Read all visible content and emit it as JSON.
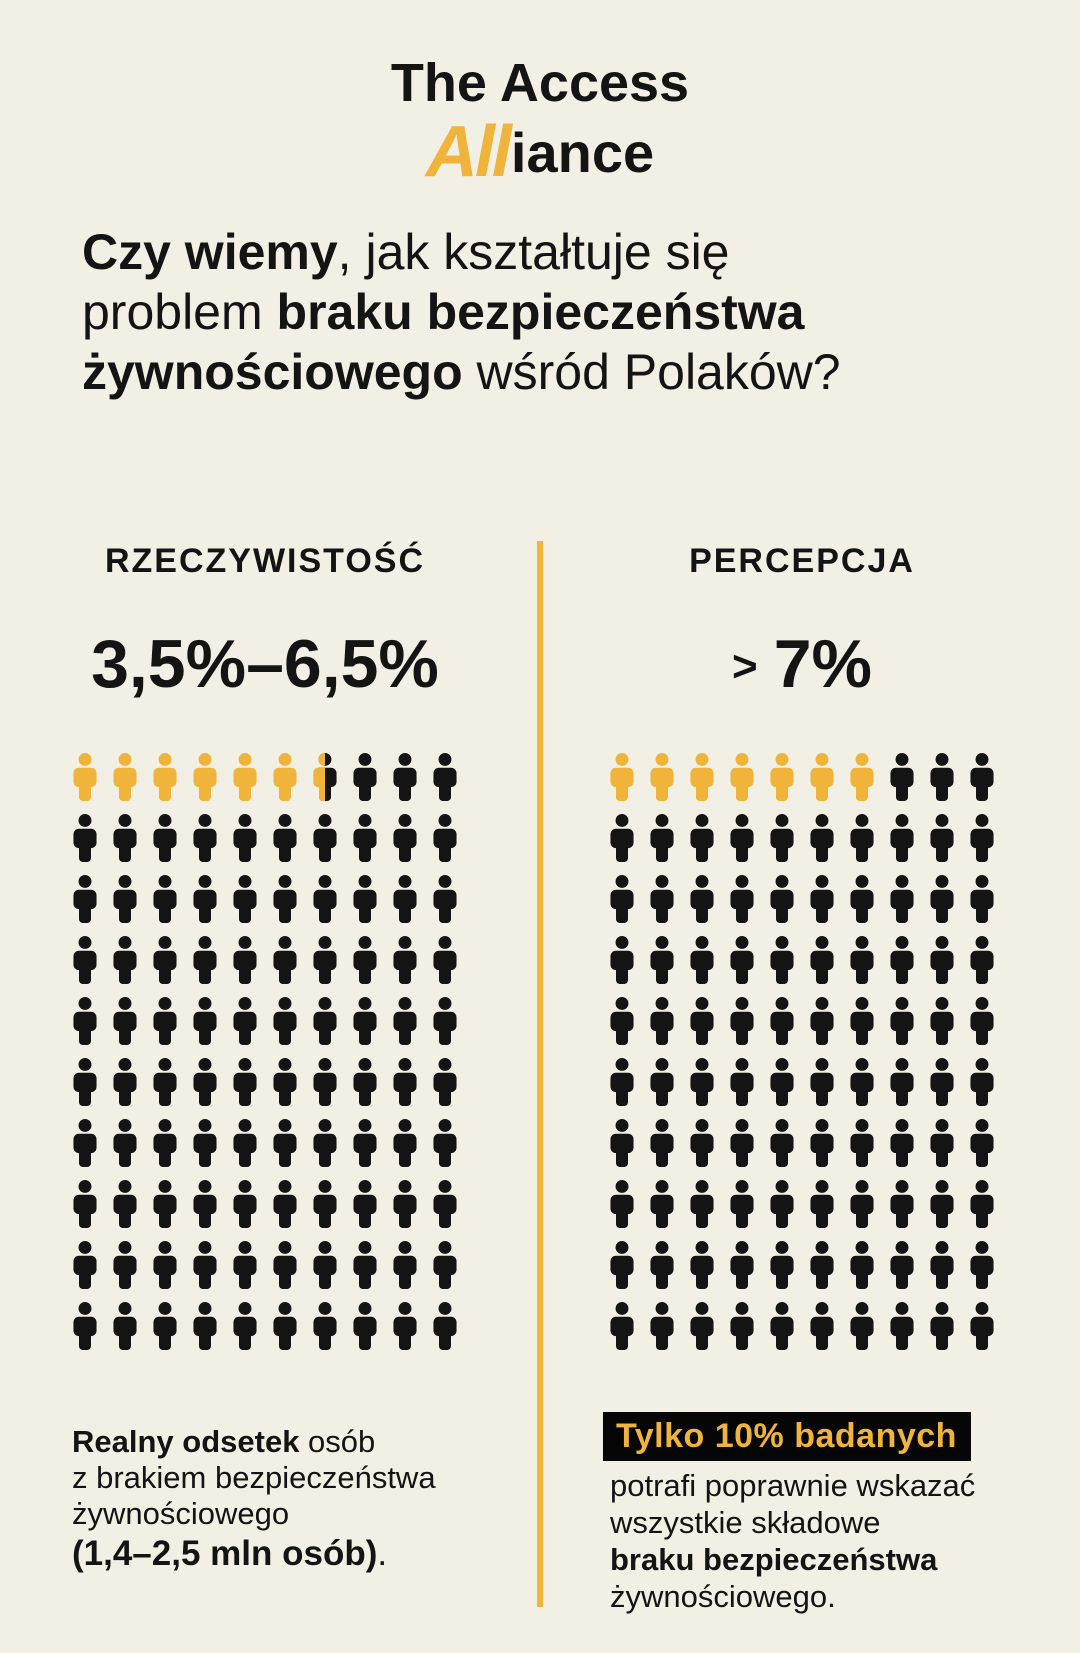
{
  "colors": {
    "background": "#F2EFE4",
    "accent": "#F1B43B",
    "ink": "#141414",
    "highlight_box_bg": "#060606",
    "highlight_box_text": "#F1B43B"
  },
  "logo": {
    "line1": "The Access",
    "script": "All",
    "rest": "iance"
  },
  "title": {
    "lines": [
      [
        {
          "t": "Czy wiemy",
          "b": true
        },
        {
          "t": ", jak kształtuje się",
          "b": false
        }
      ],
      [
        {
          "t": "problem ",
          "b": false
        },
        {
          "t": "braku bezpieczeństwa",
          "b": true
        }
      ],
      [
        {
          "t": "żywnościowego",
          "b": true
        },
        {
          "t": " wśród Polaków?",
          "b": false
        }
      ]
    ]
  },
  "chart_data": [
    {
      "type": "pictogram",
      "panel": "RZECZYWISTOŚĆ",
      "value_prefix": "",
      "value_label": "3,5%–6,5%",
      "rows": 10,
      "cols": 10,
      "total_icons": 100,
      "highlighted_icons": 6.5,
      "highlight_color": "#F1B43B",
      "base_color": "#141414"
    },
    {
      "type": "pictogram",
      "panel": "PERCEPCJA",
      "value_prefix": ">",
      "value_label": "7%",
      "rows": 10,
      "cols": 10,
      "total_icons": 100,
      "highlighted_icons": 7,
      "highlight_color": "#F1B43B",
      "base_color": "#141414"
    }
  ],
  "notes": {
    "reality": {
      "lines": [
        [
          {
            "t": "Realny odsetek",
            "b": true
          },
          {
            "t": " osób",
            "b": false
          }
        ],
        [
          {
            "t": "z brakiem bezpieczeństwa",
            "b": false
          }
        ],
        [
          {
            "t": "żywnościowego",
            "b": false
          }
        ],
        [
          {
            "t": "(1,4–2,5 mln osób)",
            "b": true
          },
          {
            "t": ".",
            "b": false
          }
        ]
      ]
    },
    "perception": {
      "highlight": "Tylko 10% badanych",
      "lines": [
        [
          {
            "t": "potrafi poprawnie wskazać",
            "b": false
          }
        ],
        [
          {
            "t": "wszystkie składowe",
            "b": false
          }
        ],
        [
          {
            "t": "braku bezpieczeństwa",
            "b": true
          }
        ],
        [
          {
            "t": "żywnościowego.",
            "b": false
          }
        ]
      ]
    }
  }
}
